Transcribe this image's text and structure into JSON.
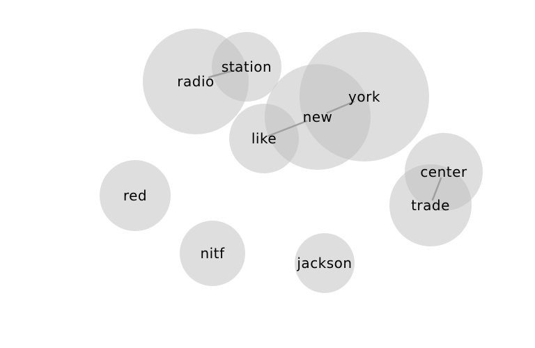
{
  "words": {
    "radio": "radio",
    "station": "station",
    "new": "new",
    "york": "york",
    "like": "like",
    "center": "center",
    "trade": "trade",
    "red": "red",
    "nitf": "nitf",
    "jackson": "jackson"
  },
  "links": [
    [
      "radio",
      "station"
    ],
    [
      "like",
      "new"
    ],
    [
      "new",
      "york"
    ],
    [
      "center",
      "trade"
    ]
  ],
  "colors": {
    "bubble": "#bdbdbd",
    "link": "#a0a0a0",
    "text": "#000000"
  }
}
